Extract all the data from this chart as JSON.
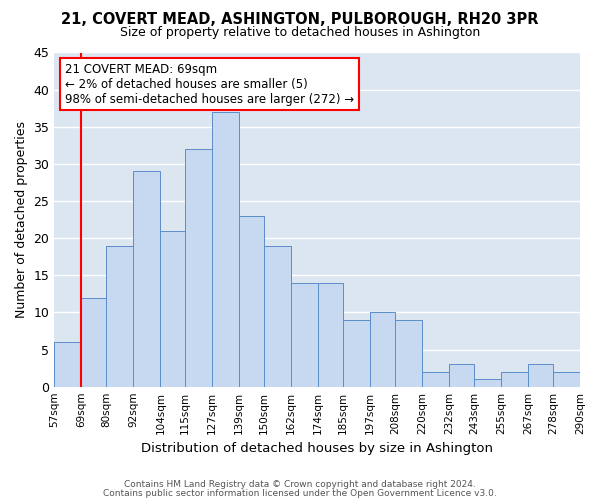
{
  "title": "21, COVERT MEAD, ASHINGTON, PULBOROUGH, RH20 3PR",
  "subtitle": "Size of property relative to detached houses in Ashington",
  "xlabel": "Distribution of detached houses by size in Ashington",
  "ylabel": "Number of detached properties",
  "bin_edges": [
    57,
    69,
    80,
    92,
    104,
    115,
    127,
    139,
    150,
    162,
    174,
    185,
    197,
    208,
    220,
    232,
    243,
    255,
    267,
    278,
    290
  ],
  "bin_labels": [
    "57sqm",
    "69sqm",
    "80sqm",
    "92sqm",
    "104sqm",
    "115sqm",
    "127sqm",
    "139sqm",
    "150sqm",
    "162sqm",
    "174sqm",
    "185sqm",
    "197sqm",
    "208sqm",
    "220sqm",
    "232sqm",
    "243sqm",
    "255sqm",
    "267sqm",
    "278sqm",
    "290sqm"
  ],
  "bar_values": [
    6,
    12,
    19,
    29,
    21,
    32,
    37,
    23,
    19,
    14,
    14,
    9,
    10,
    9,
    2,
    3,
    1,
    2,
    3,
    2
  ],
  "bar_color": "#c6d9f0",
  "bar_edge_color": "#5b8dc9",
  "highlight_bar_index": 1,
  "highlight_line_color": "#ff0000",
  "annotation_title": "21 COVERT MEAD: 69sqm",
  "annotation_line1": "← 2% of detached houses are smaller (5)",
  "annotation_line2": "98% of semi-detached houses are larger (272) →",
  "annotation_box_edge_color": "#ff0000",
  "ylim": [
    0,
    45
  ],
  "yticks": [
    0,
    5,
    10,
    15,
    20,
    25,
    30,
    35,
    40,
    45
  ],
  "footnote1": "Contains HM Land Registry data © Crown copyright and database right 2024.",
  "footnote2": "Contains public sector information licensed under the Open Government Licence v3.0.",
  "background_color": "#ffffff",
  "grid_color": "#ffffff",
  "plot_bg_color": "#dce6f1"
}
